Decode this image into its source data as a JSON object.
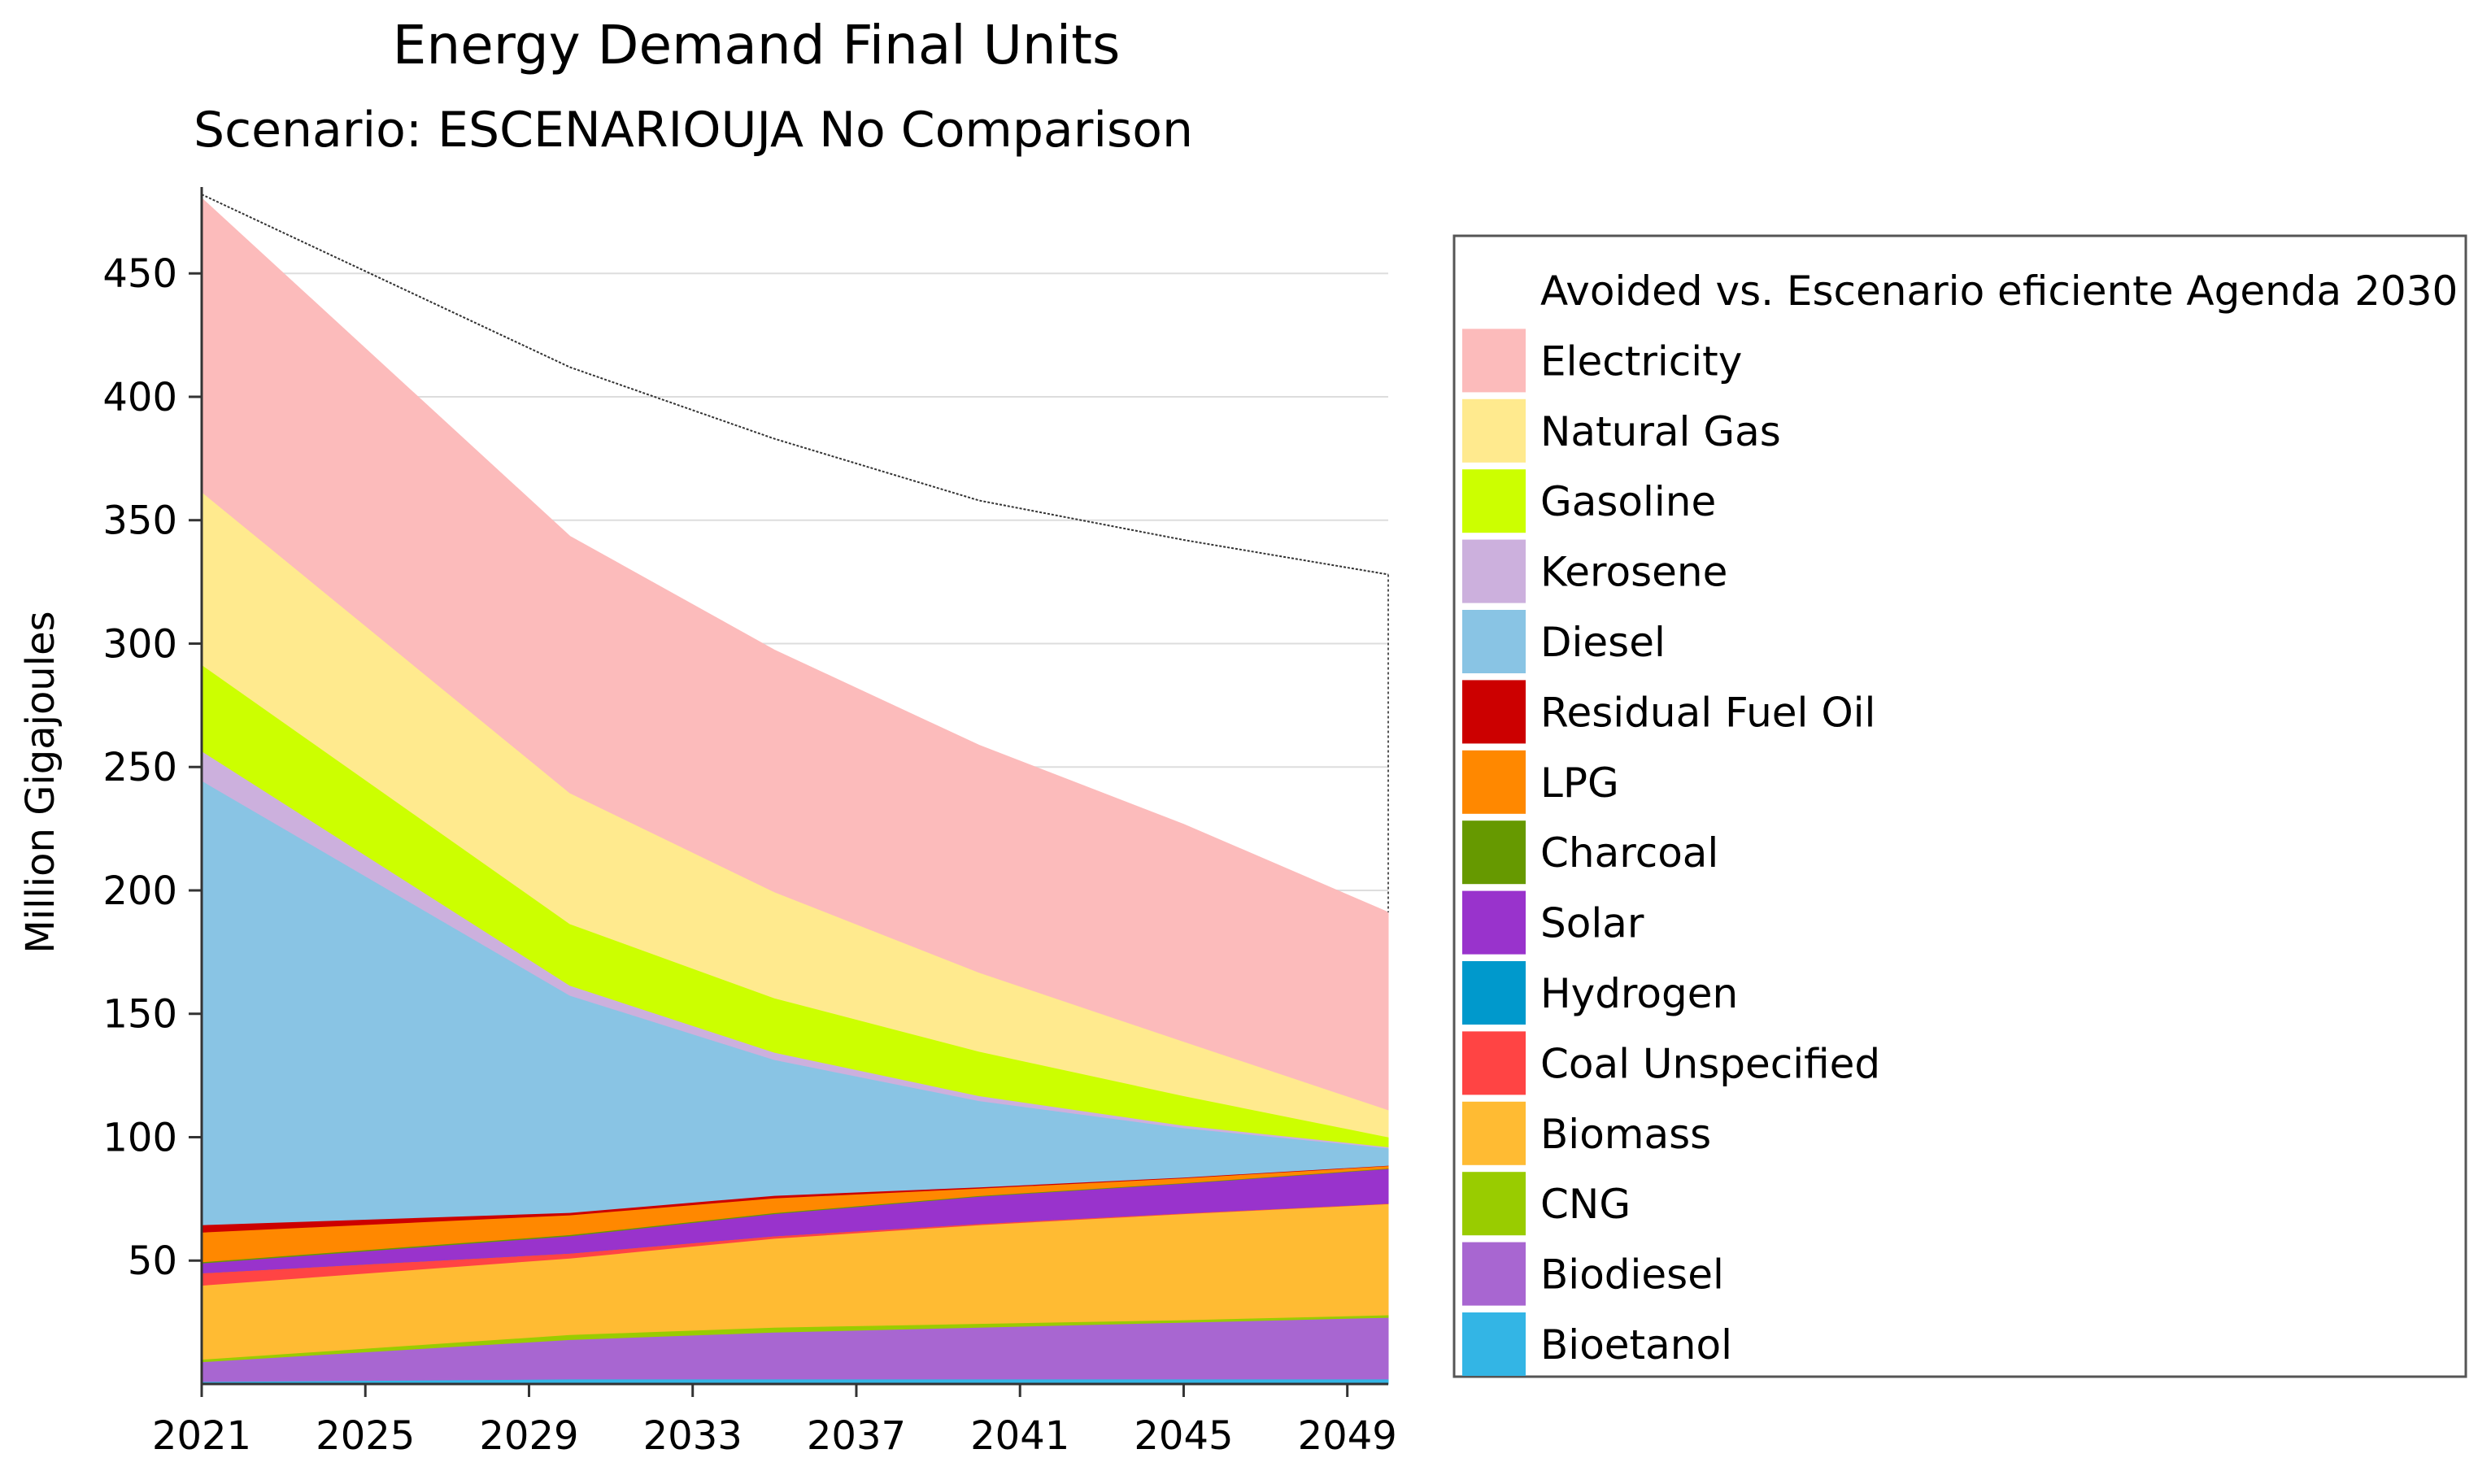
{
  "chart_data": {
    "type": "area",
    "stacked": true,
    "title": "Energy Demand Final Units",
    "subtitle": "Scenario: ESCENARIOUJA No Comparison",
    "xlabel": "",
    "ylabel": "Million Gigajoules",
    "x": [
      2021,
      2030,
      2035,
      2040,
      2045,
      2050
    ],
    "xticks": [
      "2021",
      "2025",
      "2029",
      "2033",
      "2037",
      "2041",
      "2045",
      "2049"
    ],
    "yticks": [
      "50",
      "100",
      "150",
      "200",
      "250",
      "300",
      "350",
      "400",
      "450"
    ],
    "xlim": [
      2021,
      2050
    ],
    "ylim": [
      0,
      485
    ],
    "grid": true,
    "legend_position": "right",
    "reference_line": {
      "name": "Avoided vs. Escenario eficiente Agenda 2030",
      "color": "#ffffff",
      "values": [
        482,
        412,
        383,
        358,
        342,
        328
      ]
    },
    "series": [
      {
        "name": "Bioetanol",
        "color": "#33b5e5",
        "values": [
          1,
          2,
          2,
          2,
          2,
          2
        ]
      },
      {
        "name": "Biodiesel",
        "color": "#a866d1",
        "values": [
          8,
          16,
          19,
          21,
          23,
          25
        ]
      },
      {
        "name": "CNG",
        "color": "#99cc00",
        "values": [
          1,
          2,
          2,
          1.5,
          1,
          1
        ]
      },
      {
        "name": "Biomass",
        "color": "#ffbb33",
        "values": [
          30,
          31,
          36,
          40,
          43,
          45
        ]
      },
      {
        "name": "Coal Unspecified",
        "color": "#ff4444",
        "values": [
          5,
          2,
          1,
          0.5,
          0.3,
          0.2
        ]
      },
      {
        "name": "Hydrogen",
        "color": "#0099cc",
        "values": [
          0,
          0,
          0,
          0,
          0,
          0
        ]
      },
      {
        "name": "Solar",
        "color": "#9933cc",
        "values": [
          4,
          7,
          9,
          11,
          12,
          14
        ]
      },
      {
        "name": "Charcoal",
        "color": "#669900",
        "values": [
          0.5,
          0.5,
          0.4,
          0.3,
          0.2,
          0.2
        ]
      },
      {
        "name": "LPG",
        "color": "#ff8800",
        "values": [
          12,
          8,
          6,
          3,
          2,
          1
        ]
      },
      {
        "name": "Residual Fuel Oil",
        "color": "#cc0000",
        "values": [
          3,
          1,
          1,
          0.5,
          0.3,
          0.2
        ]
      },
      {
        "name": "Diesel",
        "color": "#89c4e4",
        "values": [
          180,
          88,
          55,
          35,
          20,
          7
        ]
      },
      {
        "name": "Kerosene",
        "color": "#ccb0dd",
        "values": [
          12,
          4,
          3,
          2,
          1,
          0.5
        ]
      },
      {
        "name": "Gasoline",
        "color": "#ccff00",
        "values": [
          35,
          25,
          22,
          18,
          12,
          4
        ]
      },
      {
        "name": "Natural Gas",
        "color": "#ffea8e",
        "values": [
          70,
          53,
          43,
          32,
          22,
          11
        ]
      },
      {
        "name": "Electricity",
        "color": "#fcbbbb",
        "values": [
          119,
          104,
          98,
          92,
          88,
          80
        ]
      }
    ],
    "legend": [
      {
        "name": "Avoided vs. Escenario eficiente Agenda 2030",
        "color": "#ffffff"
      },
      {
        "name": "Electricity",
        "color": "#fcbbbb"
      },
      {
        "name": "Natural Gas",
        "color": "#ffea8e"
      },
      {
        "name": "Gasoline",
        "color": "#ccff00"
      },
      {
        "name": "Kerosene",
        "color": "#ccb0dd"
      },
      {
        "name": "Diesel",
        "color": "#89c4e4"
      },
      {
        "name": "Residual Fuel Oil",
        "color": "#cc0000"
      },
      {
        "name": "LPG",
        "color": "#ff8800"
      },
      {
        "name": "Charcoal",
        "color": "#669900"
      },
      {
        "name": "Solar",
        "color": "#9933cc"
      },
      {
        "name": "Hydrogen",
        "color": "#0099cc"
      },
      {
        "name": "Coal Unspecified",
        "color": "#ff4444"
      },
      {
        "name": "Biomass",
        "color": "#ffbb33"
      },
      {
        "name": "CNG",
        "color": "#99cc00"
      },
      {
        "name": "Biodiesel",
        "color": "#a866d1"
      },
      {
        "name": "Bioetanol",
        "color": "#33b5e5"
      }
    ]
  }
}
